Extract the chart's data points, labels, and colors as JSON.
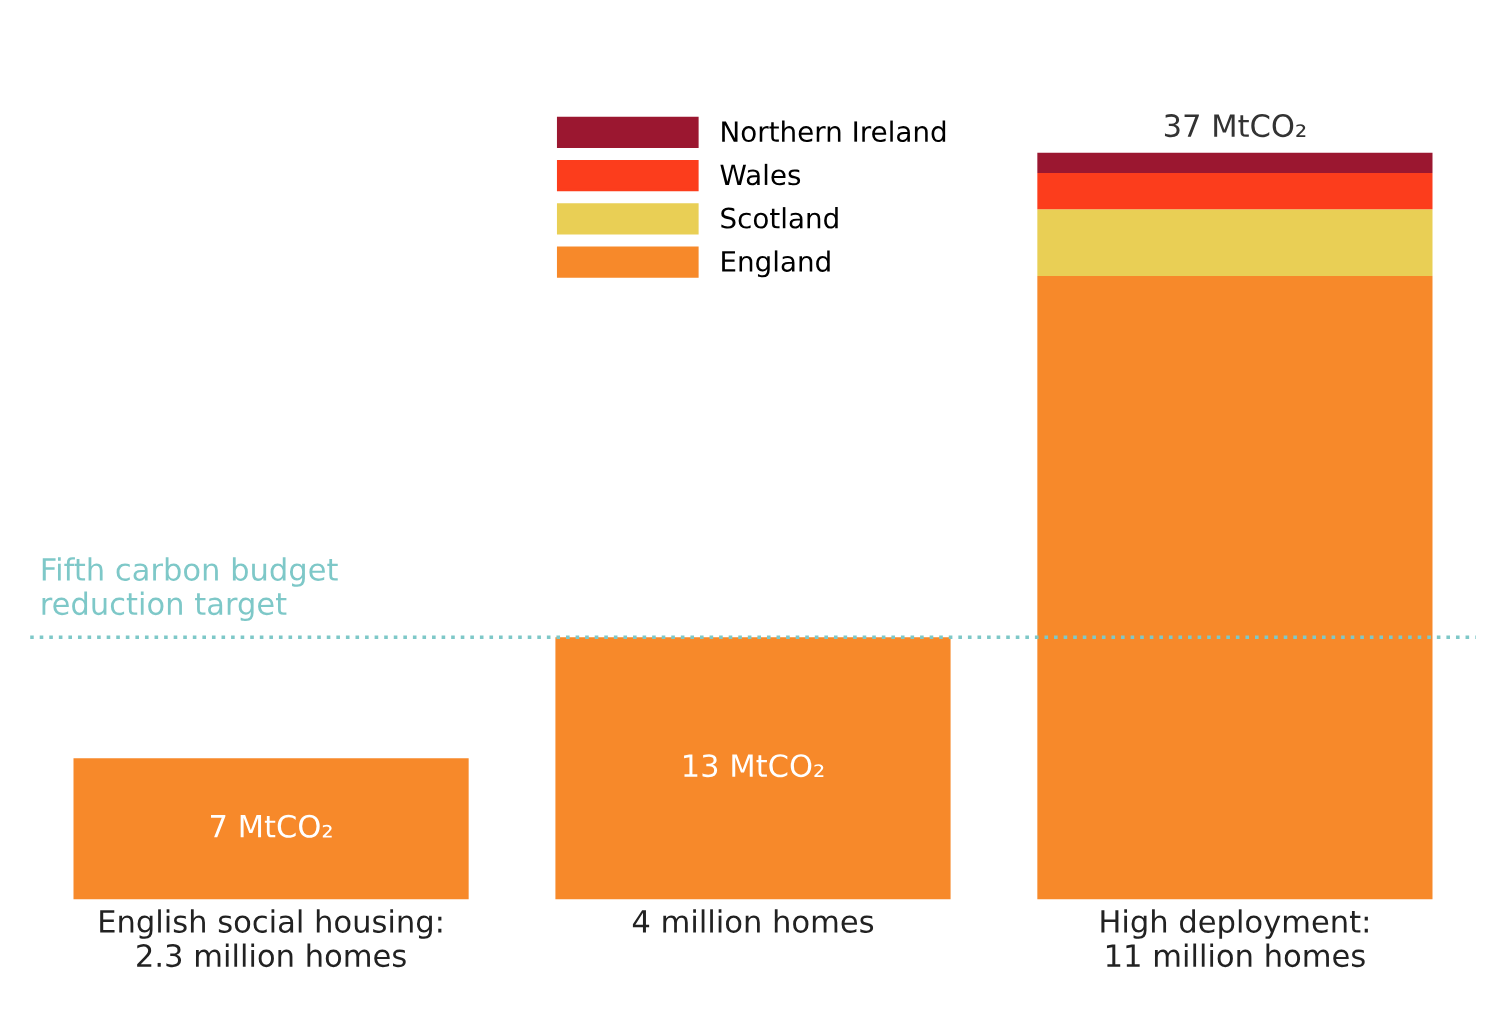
{
  "chart_data": {
    "type": "bar",
    "stacked": true,
    "categories": [
      "English social housing:\n2.3 million homes",
      "4 million homes",
      "High deployment:\n11 million homes"
    ],
    "series": [
      {
        "name": "England",
        "color": "#f7892a",
        "values": [
          7,
          13,
          30.9
        ],
        "value_labels": [
          "7 MtCO₂",
          "13 MtCO₂",
          null
        ]
      },
      {
        "name": "Scotland",
        "color": "#e9cf55",
        "values": [
          null,
          null,
          3.3
        ]
      },
      {
        "name": "Wales",
        "color": "#fc3d1c",
        "values": [
          null,
          null,
          1.8
        ]
      },
      {
        "name": "Northern Ireland",
        "color": "#9b1730",
        "values": [
          null,
          null,
          1.0
        ]
      }
    ],
    "totals": [
      null,
      null,
      "37 MtCO₂"
    ],
    "ref_lines": [
      {
        "axis": "y",
        "value": 13,
        "label": "Fifth carbon budget\nreduction target",
        "color": "#7ec8c8",
        "line_style": "dotted"
      }
    ],
    "legend": "top",
    "grid": false,
    "tick_labels": "x"
  }
}
